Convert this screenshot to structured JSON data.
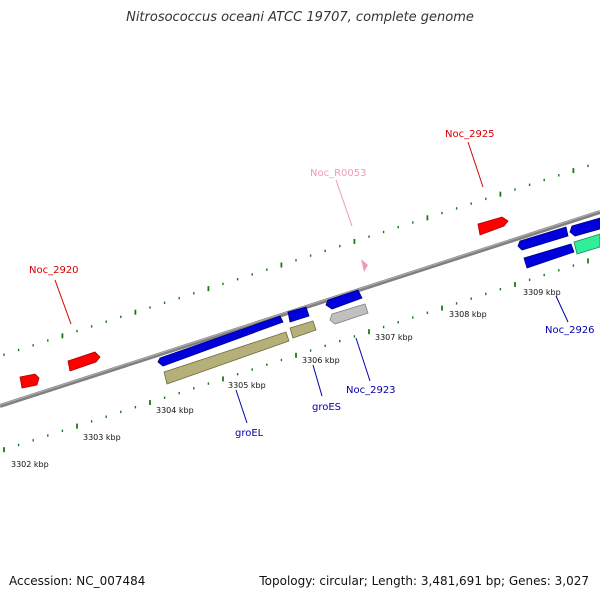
{
  "title": "Nitrosococcus oceani ATCC 19707, complete genome",
  "footer": {
    "accession": "Accession: NC_007484",
    "summary": "Topology: circular; Length: 3,481,691 bp; Genes: 3,027"
  },
  "kbp_labels": [
    "3302 kbp",
    "3303 kbp",
    "3304 kbp",
    "3305 kbp",
    "3306 kbp",
    "3307 kbp",
    "3308 kbp",
    "3309 kbp"
  ],
  "gene_labels": {
    "Noc_2920": "Noc_2920",
    "Noc_2925": "Noc_2925",
    "Noc_R0053": "Noc_R0053",
    "groEL": "groEL",
    "groES": "groES",
    "Noc_2923": "Noc_2923",
    "Noc_2926": "Noc_2926"
  },
  "colors": {
    "red_gene": "#ff0000",
    "blue_gene": "#0000dd",
    "olive_gene": "#b5b07a",
    "gray_gene": "#c0c0c0",
    "green_gene": "#33ee99",
    "tick": "#1a7a1a",
    "axis": "#808080",
    "label_red": "#d40000",
    "label_blue": "#0000aa",
    "label_pink": "#ee99bb"
  }
}
